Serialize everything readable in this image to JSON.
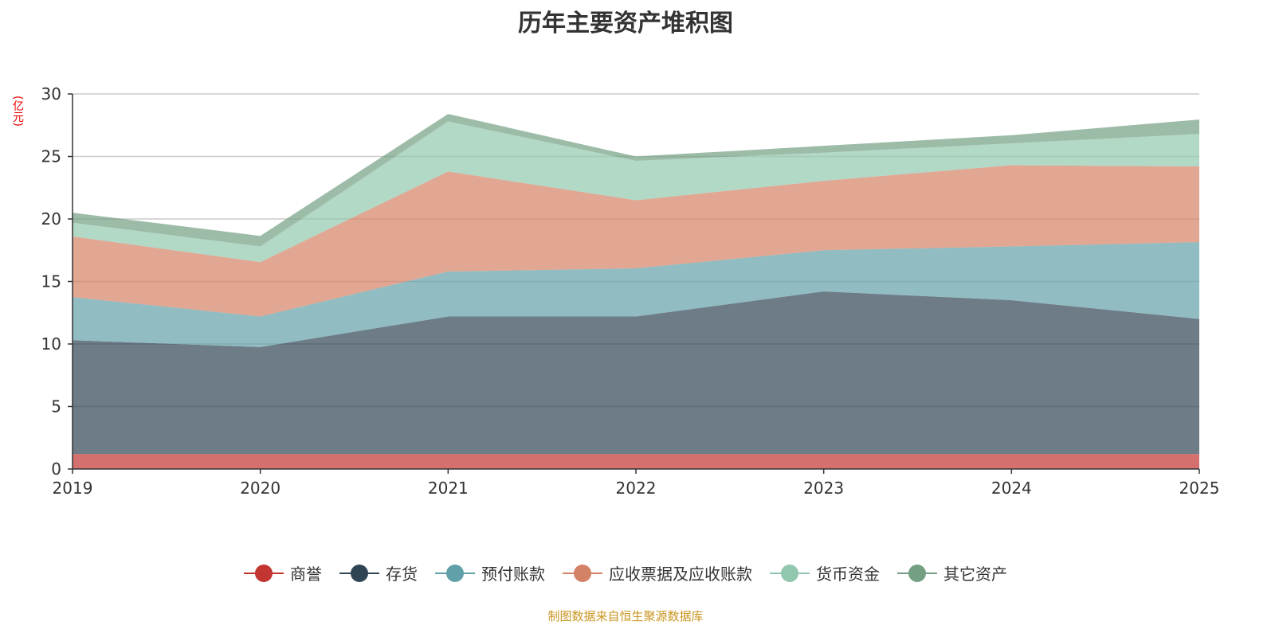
{
  "chart_data": {
    "type": "area",
    "stacked": true,
    "title": "历年主要资产堆积图",
    "ylabel": "(亿元)",
    "xlabel": "",
    "ylim": [
      0,
      30
    ],
    "yticks": [
      "0",
      "5",
      "10",
      "15",
      "20",
      "25",
      "30"
    ],
    "categories": [
      "2019",
      "2020",
      "2021",
      "2022",
      "2023",
      "2024",
      "2025"
    ],
    "grid": true,
    "legend_position": "bottom",
    "series": [
      {
        "name": "商誉",
        "color": "#c23531",
        "values": [
          1.2,
          1.2,
          1.2,
          1.2,
          1.2,
          1.2,
          1.2
        ]
      },
      {
        "name": "存货",
        "color": "#2f4554",
        "values": [
          9.1,
          8.55,
          11.0,
          11.0,
          13.0,
          12.3,
          10.8
        ]
      },
      {
        "name": "预付账款",
        "color": "#61a0a8",
        "values": [
          3.45,
          2.45,
          3.6,
          3.85,
          3.3,
          4.3,
          6.15
        ]
      },
      {
        "name": "应收票据及应收账款",
        "color": "#d48265",
        "values": [
          4.85,
          4.35,
          8.0,
          5.45,
          5.55,
          6.5,
          6.05
        ]
      },
      {
        "name": "货币资金",
        "color": "#91c7ae",
        "values": [
          1.1,
          1.25,
          4.0,
          3.15,
          2.25,
          1.75,
          2.6
        ]
      },
      {
        "name": "其它资产",
        "color": "#749f83",
        "values": [
          0.8,
          0.85,
          0.6,
          0.35,
          0.55,
          0.65,
          1.15
        ]
      }
    ]
  },
  "source": "制图数据来自恒生聚源数据库"
}
